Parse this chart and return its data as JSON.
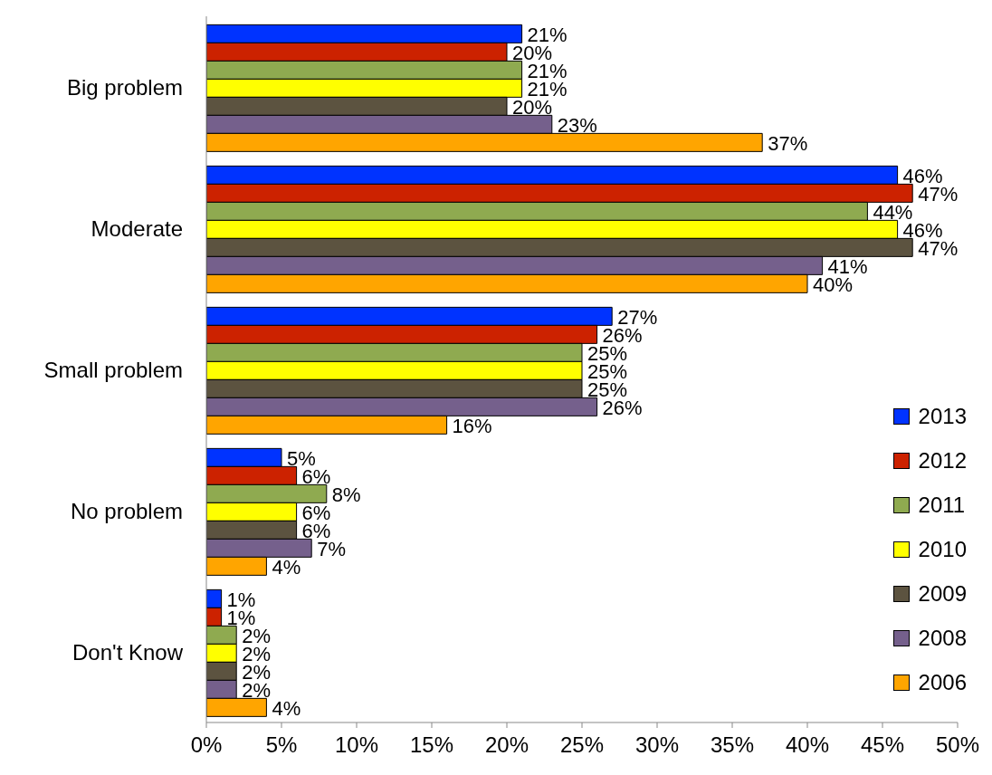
{
  "chart_data": {
    "type": "bar",
    "orientation": "horizontal",
    "categories": [
      "Big problem",
      "Moderate",
      "Small problem",
      "No problem",
      "Don't Know"
    ],
    "series": [
      {
        "name": "2013",
        "color": "#0033ff",
        "values": [
          21,
          46,
          27,
          5,
          1
        ],
        "value_labels": [
          "21%",
          "46%",
          "27%",
          "5%",
          "1%"
        ]
      },
      {
        "name": "2012",
        "color": "#cc2200",
        "values": [
          20,
          47,
          26,
          6,
          1
        ],
        "value_labels": [
          "20%",
          "47%",
          "26%",
          "6%",
          "1%"
        ]
      },
      {
        "name": "2011",
        "color": "#8faa50",
        "values": [
          21,
          44,
          25,
          8,
          2
        ],
        "value_labels": [
          "21%",
          "44%",
          "25%",
          "8%",
          "2%"
        ]
      },
      {
        "name": "2010",
        "color": "#ffff00",
        "values": [
          21,
          46,
          25,
          6,
          2
        ],
        "value_labels": [
          "21%",
          "46%",
          "25%",
          "6%",
          "2%"
        ]
      },
      {
        "name": "2009",
        "color": "#5c5340",
        "values": [
          20,
          47,
          25,
          6,
          2
        ],
        "value_labels": [
          "20%",
          "47%",
          "25%",
          "6%",
          "2%"
        ]
      },
      {
        "name": "2008",
        "color": "#75608c",
        "values": [
          23,
          41,
          26,
          7,
          2
        ],
        "value_labels": [
          "23%",
          "41%",
          "26%",
          "7%",
          "2%"
        ]
      },
      {
        "name": "2006",
        "color": "#ffa500",
        "values": [
          37,
          40,
          16,
          4,
          4
        ],
        "value_labels": [
          "37%",
          "40%",
          "16%",
          "4%",
          "4%"
        ]
      }
    ],
    "xlim": [
      0,
      50
    ],
    "xticks": [
      {
        "value": 0,
        "label": "0%"
      },
      {
        "value": 5,
        "label": "5%"
      },
      {
        "value": 10,
        "label": "10%"
      },
      {
        "value": 15,
        "label": "15%"
      },
      {
        "value": 20,
        "label": "20%"
      },
      {
        "value": 25,
        "label": "25%"
      },
      {
        "value": 30,
        "label": "30%"
      },
      {
        "value": 35,
        "label": "35%"
      },
      {
        "value": 40,
        "label": "40%"
      },
      {
        "value": 45,
        "label": "45%"
      },
      {
        "value": 50,
        "label": "50%"
      }
    ],
    "grid": false,
    "legend": "bottom right"
  }
}
